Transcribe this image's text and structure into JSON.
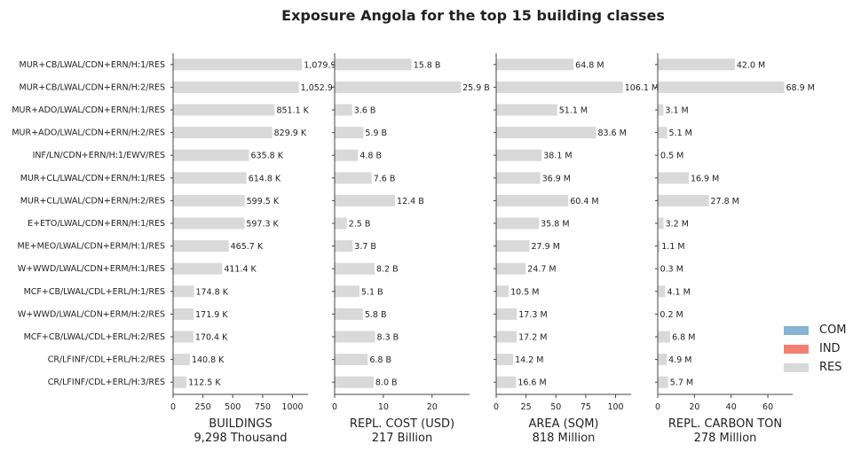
{
  "title": "Exposure Angola for the top 15 building classes",
  "legend": [
    {
      "label": "COM",
      "color": "#86b4d3"
    },
    {
      "label": "IND",
      "color": "#f47f6e"
    },
    {
      "label": "RES",
      "color": "#d9d9d9"
    }
  ],
  "chart_data": {
    "type": "bar",
    "orientation": "horizontal",
    "categories": [
      "MUR+CB/LWAL/CDN+ERN/H:1/RES",
      "MUR+CB/LWAL/CDN+ERN/H:2/RES",
      "MUR+ADO/LWAL/CDN+ERN/H:1/RES",
      "MUR+ADO/LWAL/CDN+ERN/H:2/RES",
      "INF/LN/CDN+ERN/H:1/EWV/RES",
      "MUR+CL/LWAL/CDN+ERN/H:1/RES",
      "MUR+CL/LWAL/CDN+ERN/H:2/RES",
      "E+ETO/LWAL/CDN+ERN/H:1/RES",
      "ME+MEO/LWAL/CDN+ERM/H:1/RES",
      "W+WWD/LWAL/CDN+ERM/H:1/RES",
      "MCF+CB/LWAL/CDL+ERL/H:1/RES",
      "W+WWD/LWAL/CDN+ERM/H:2/RES",
      "MCF+CB/LWAL/CDL+ERL/H:2/RES",
      "CR/LFINF/CDL+ERL/H:2/RES",
      "CR/LFINF/CDL+ERL/H:3/RES"
    ],
    "series_color": "#d9d9d9",
    "panels": [
      {
        "xlabel": "BUILDINGS",
        "subtitle": "9,298 Thousand",
        "xlim": [
          0,
          1130
        ],
        "xticks": [
          0,
          250,
          500,
          750,
          1000
        ],
        "values": [
          1079.9,
          1052.9,
          851.1,
          829.9,
          635.8,
          614.8,
          599.5,
          597.3,
          465.7,
          411.4,
          174.8,
          171.9,
          170.4,
          140.8,
          112.5
        ],
        "labels": [
          "1,079.9",
          "1,052.9",
          "851.1 K",
          "829.9 K",
          "635.8 K",
          "614.8 K",
          "599.5 K",
          "597.3 K",
          "465.7 K",
          "411.4 K",
          "174.8 K",
          "171.9 K",
          "170.4 K",
          "140.8 K",
          "112.5 K"
        ]
      },
      {
        "xlabel": "REPL. COST (USD)",
        "subtitle": "217 Billion",
        "xlim": [
          0,
          27.7
        ],
        "xticks": [
          0,
          10,
          20
        ],
        "values": [
          15.8,
          25.9,
          3.6,
          5.9,
          4.8,
          7.6,
          12.4,
          2.5,
          3.7,
          8.2,
          5.1,
          5.8,
          8.3,
          6.8,
          8.0
        ],
        "labels": [
          "15.8 B",
          "25.9 B",
          "3.6 B",
          "5.9 B",
          "4.8 B",
          "7.6 B",
          "12.4 B",
          "2.5 B",
          "3.7 B",
          "8.2 B",
          "5.1 B",
          "5.8 B",
          "8.3 B",
          "6.8 B",
          "8.0 B"
        ]
      },
      {
        "xlabel": "AREA (SQM)",
        "subtitle": "818 Million",
        "xlim": [
          0,
          113
        ],
        "xticks": [
          0,
          25,
          50,
          75,
          100
        ],
        "values": [
          64.8,
          106.1,
          51.1,
          83.6,
          38.1,
          36.9,
          60.4,
          35.8,
          27.9,
          24.7,
          10.5,
          17.3,
          17.2,
          14.2,
          16.6
        ],
        "labels": [
          "64.8 M",
          "106.1 M",
          "51.1 M",
          "83.6 M",
          "38.1 M",
          "36.9 M",
          "60.4 M",
          "35.8 M",
          "27.9 M",
          "24.7 M",
          "10.5 M",
          "17.3 M",
          "17.2 M",
          "14.2 M",
          "16.6 M"
        ]
      },
      {
        "xlabel": "REPL. CARBON TON",
        "subtitle": "278 Million",
        "xlim": [
          0,
          73.5
        ],
        "xticks": [
          0,
          20,
          40,
          60
        ],
        "values": [
          42.0,
          68.9,
          3.1,
          5.1,
          0.5,
          16.9,
          27.8,
          3.2,
          1.1,
          0.3,
          4.1,
          0.2,
          6.8,
          4.9,
          5.7
        ],
        "labels": [
          "42.0 M",
          "68.9 M",
          "3.1 M",
          "5.1 M",
          "0.5 M",
          "16.9 M",
          "27.8 M",
          "3.2 M",
          "1.1 M",
          "0.3 M",
          "4.1 M",
          "0.2 M",
          "6.8 M",
          "4.9 M",
          "5.7 M"
        ]
      }
    ],
    "grid": false,
    "legend_position": "bottom-right"
  }
}
